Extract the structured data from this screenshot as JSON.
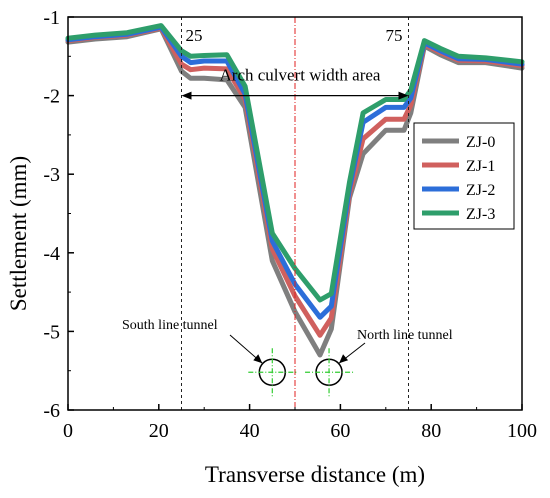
{
  "chart_data": {
    "type": "line",
    "title": "",
    "xlabel": "Transverse distance (m)",
    "ylabel": "Settlement (mm)",
    "xlim": [
      0,
      100
    ],
    "ylim": [
      -6,
      -1
    ],
    "xticks": [
      0,
      20,
      40,
      60,
      80,
      100
    ],
    "yticks": [
      -1,
      -2,
      -3,
      -4,
      -5,
      -6
    ],
    "grid": false,
    "legend_position": "right",
    "series": [
      {
        "name": "ZJ-0",
        "color": "#7f7f7f",
        "x": [
          0,
          6,
          13,
          20.5,
          25,
          27,
          30,
          35,
          39,
          45,
          50,
          55.5,
          58,
          62,
          65,
          70,
          74,
          75.5,
          78.5,
          82,
          86,
          92,
          100
        ],
        "y": [
          -1.32,
          -1.28,
          -1.25,
          -1.15,
          -1.69,
          -1.78,
          -1.78,
          -1.8,
          -2.15,
          -4.1,
          -4.75,
          -5.3,
          -4.97,
          -3.3,
          -2.74,
          -2.44,
          -2.44,
          -2.22,
          -1.37,
          -1.48,
          -1.58,
          -1.58,
          -1.65
        ]
      },
      {
        "name": "ZJ-1",
        "color": "#d0605e",
        "x": [
          0,
          6,
          13,
          20.5,
          25,
          27,
          30,
          35,
          39,
          45,
          50,
          55.5,
          58,
          62,
          65,
          70,
          74,
          75.5,
          78.5,
          82,
          86,
          92,
          100
        ],
        "y": [
          -1.3,
          -1.26,
          -1.23,
          -1.14,
          -1.6,
          -1.67,
          -1.65,
          -1.66,
          -2.05,
          -3.95,
          -4.55,
          -5.05,
          -4.83,
          -3.25,
          -2.55,
          -2.3,
          -2.3,
          -2.12,
          -1.35,
          -1.45,
          -1.55,
          -1.56,
          -1.62
        ]
      },
      {
        "name": "ZJ-2",
        "color": "#2c6ed9",
        "x": [
          0,
          6,
          13,
          20.5,
          25,
          27,
          30,
          35,
          39,
          45,
          50,
          55.5,
          58,
          62,
          65,
          70,
          74,
          75.5,
          78.5,
          82,
          86,
          92,
          100
        ],
        "y": [
          -1.29,
          -1.25,
          -1.22,
          -1.13,
          -1.5,
          -1.58,
          -1.56,
          -1.56,
          -1.98,
          -3.85,
          -4.4,
          -4.82,
          -4.68,
          -3.18,
          -2.34,
          -2.15,
          -2.15,
          -2.03,
          -1.33,
          -1.43,
          -1.53,
          -1.54,
          -1.6
        ]
      },
      {
        "name": "ZJ-3",
        "color": "#2e9e6b",
        "x": [
          0,
          6,
          13,
          20.5,
          25,
          27,
          30,
          35,
          39,
          45,
          50,
          55.5,
          58,
          62,
          65,
          70,
          74,
          75.5,
          78.5,
          82,
          86,
          92,
          100
        ],
        "y": [
          -1.27,
          -1.23,
          -1.2,
          -1.11,
          -1.43,
          -1.5,
          -1.49,
          -1.48,
          -1.88,
          -3.75,
          -4.2,
          -4.6,
          -4.52,
          -3.1,
          -2.22,
          -2.05,
          -2.05,
          -1.93,
          -1.3,
          -1.4,
          -1.5,
          -1.52,
          -1.57
        ]
      }
    ],
    "annotations": {
      "left_line_label": "25",
      "right_line_label": "75",
      "width_area_label": "Arch culvert width area",
      "south_tunnel_label": "South line tunnel",
      "north_tunnel_label": "North line tunnel"
    },
    "reference_lines": {
      "left_x": 25,
      "right_x": 75,
      "center_x": 50,
      "arrow_y": -2.0
    },
    "tunnels": [
      {
        "x": 45,
        "y": -5.52
      },
      {
        "x": 57.5,
        "y": -5.52
      }
    ]
  }
}
